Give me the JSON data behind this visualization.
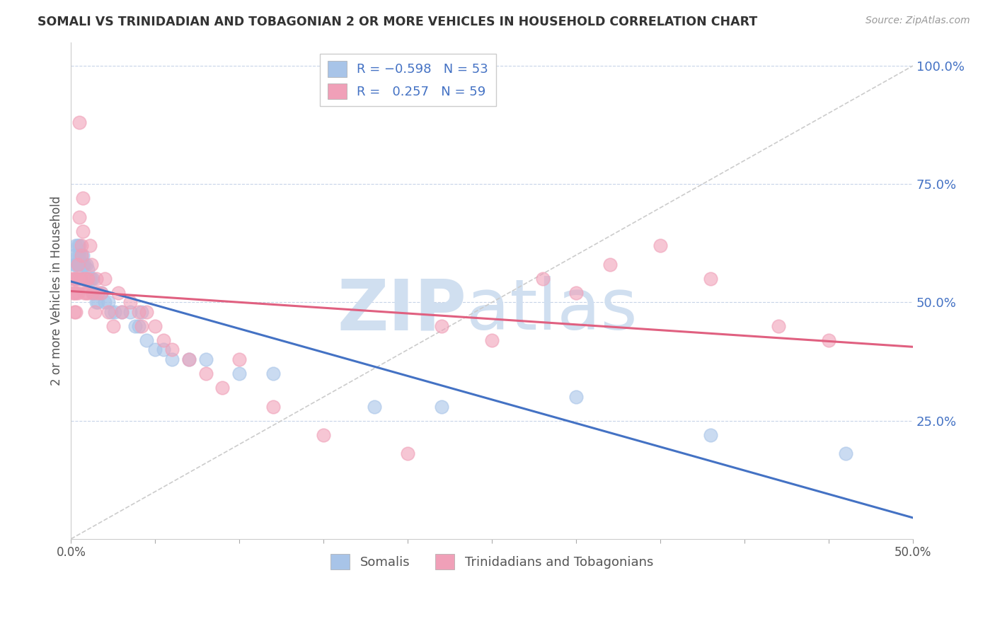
{
  "title": "SOMALI VS TRINIDADIAN AND TOBAGONIAN 2 OR MORE VEHICLES IN HOUSEHOLD CORRELATION CHART",
  "source_text": "Source: ZipAtlas.com",
  "ylabel": "2 or more Vehicles in Household",
  "xlim": [
    0.0,
    0.5
  ],
  "ylim": [
    0.0,
    1.05
  ],
  "xticks": [
    0.0,
    0.05,
    0.1,
    0.15,
    0.2,
    0.25,
    0.3,
    0.35,
    0.4,
    0.45,
    0.5
  ],
  "xticklabels": [
    "0.0%",
    "",
    "",
    "",
    "",
    "",
    "",
    "",
    "",
    "",
    "50.0%"
  ],
  "yticks": [
    0.25,
    0.5,
    0.75,
    1.0
  ],
  "yticklabels": [
    "25.0%",
    "50.0%",
    "75.0%",
    "100.0%"
  ],
  "somali_color": "#a8c4e8",
  "trini_color": "#f0a0b8",
  "somali_line_color": "#4472c4",
  "trini_line_color": "#e06080",
  "ref_line_color": "#cccccc",
  "legend_label_somali": "Somalis",
  "legend_label_trini": "Trinidadians and Tobagonians",
  "watermark_zip": "ZIP",
  "watermark_atlas": "atlas",
  "watermark_color": "#d0dff0",
  "somali_x": [
    0.002,
    0.002,
    0.003,
    0.003,
    0.003,
    0.004,
    0.004,
    0.004,
    0.005,
    0.005,
    0.005,
    0.006,
    0.006,
    0.006,
    0.007,
    0.007,
    0.007,
    0.008,
    0.008,
    0.009,
    0.009,
    0.01,
    0.01,
    0.011,
    0.012,
    0.013,
    0.013,
    0.014,
    0.015,
    0.016,
    0.018,
    0.02,
    0.022,
    0.024,
    0.026,
    0.03,
    0.035,
    0.038,
    0.04,
    0.042,
    0.045,
    0.05,
    0.055,
    0.06,
    0.07,
    0.08,
    0.1,
    0.12,
    0.18,
    0.22,
    0.3,
    0.38,
    0.46
  ],
  "somali_y": [
    0.6,
    0.58,
    0.62,
    0.58,
    0.55,
    0.62,
    0.6,
    0.58,
    0.62,
    0.6,
    0.58,
    0.6,
    0.58,
    0.55,
    0.6,
    0.58,
    0.55,
    0.58,
    0.55,
    0.58,
    0.55,
    0.57,
    0.55,
    0.55,
    0.55,
    0.52,
    0.55,
    0.52,
    0.5,
    0.5,
    0.52,
    0.5,
    0.5,
    0.48,
    0.48,
    0.48,
    0.48,
    0.45,
    0.45,
    0.48,
    0.42,
    0.4,
    0.4,
    0.38,
    0.38,
    0.38,
    0.35,
    0.35,
    0.28,
    0.28,
    0.3,
    0.22,
    0.18
  ],
  "trini_x": [
    0.001,
    0.001,
    0.002,
    0.002,
    0.002,
    0.003,
    0.003,
    0.003,
    0.004,
    0.004,
    0.004,
    0.005,
    0.005,
    0.006,
    0.006,
    0.006,
    0.007,
    0.007,
    0.008,
    0.008,
    0.009,
    0.009,
    0.01,
    0.01,
    0.011,
    0.012,
    0.013,
    0.014,
    0.015,
    0.016,
    0.018,
    0.02,
    0.022,
    0.025,
    0.028,
    0.03,
    0.035,
    0.04,
    0.042,
    0.045,
    0.05,
    0.055,
    0.06,
    0.07,
    0.08,
    0.09,
    0.1,
    0.12,
    0.15,
    0.2,
    0.22,
    0.25,
    0.28,
    0.3,
    0.32,
    0.35,
    0.38,
    0.42,
    0.45
  ],
  "trini_y": [
    0.55,
    0.52,
    0.55,
    0.52,
    0.48,
    0.55,
    0.52,
    0.48,
    0.58,
    0.55,
    0.52,
    0.68,
    0.88,
    0.6,
    0.62,
    0.55,
    0.72,
    0.65,
    0.55,
    0.52,
    0.55,
    0.52,
    0.55,
    0.52,
    0.62,
    0.58,
    0.52,
    0.48,
    0.55,
    0.52,
    0.52,
    0.55,
    0.48,
    0.45,
    0.52,
    0.48,
    0.5,
    0.48,
    0.45,
    0.48,
    0.45,
    0.42,
    0.4,
    0.38,
    0.35,
    0.32,
    0.38,
    0.28,
    0.22,
    0.18,
    0.45,
    0.42,
    0.55,
    0.52,
    0.58,
    0.62,
    0.55,
    0.45,
    0.42
  ]
}
